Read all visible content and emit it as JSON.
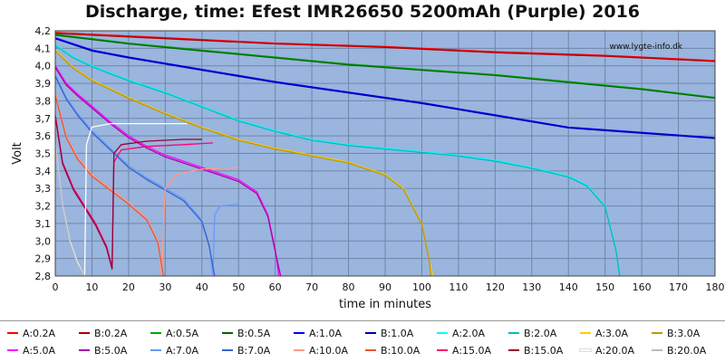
{
  "chart_data": {
    "type": "line",
    "title": "Discharge, time: Efest IMR26650 5200mAh (Purple) 2016",
    "watermark": "www.lygte-info.dk",
    "xlabel": "time in minutes",
    "ylabel": "Volt",
    "xlim": [
      0,
      180
    ],
    "ylim": [
      2.8,
      4.2
    ],
    "x_ticks": [
      "0",
      "10",
      "20",
      "30",
      "40",
      "50",
      "60",
      "70",
      "80",
      "90",
      "100",
      "110",
      "120",
      "130",
      "140",
      "150",
      "160",
      "170",
      "180"
    ],
    "y_ticks": [
      "2,8",
      "2,9",
      "3,0",
      "3,1",
      "3,2",
      "3,3",
      "3,4",
      "3,5",
      "3,6",
      "3,7",
      "3,8",
      "3,9",
      "4,0",
      "4,1",
      "4,2"
    ],
    "grid": true,
    "background_color": "#9ab5de",
    "legend_position": "bottom",
    "series": [
      {
        "name": "A:0.2A",
        "color": "#ff0000",
        "points": [
          [
            0,
            4.19
          ],
          [
            30,
            4.16
          ],
          [
            60,
            4.13
          ],
          [
            90,
            4.11
          ],
          [
            120,
            4.08
          ],
          [
            150,
            4.06
          ],
          [
            180,
            4.03
          ]
        ]
      },
      {
        "name": "B:0.2A",
        "color": "#aa0000",
        "points": [
          [
            0,
            4.185
          ],
          [
            30,
            4.155
          ],
          [
            60,
            4.125
          ],
          [
            90,
            4.105
          ],
          [
            120,
            4.075
          ],
          [
            150,
            4.055
          ],
          [
            180,
            4.025
          ]
        ]
      },
      {
        "name": "A:0.5A",
        "color": "#00aa00",
        "points": [
          [
            0,
            4.18
          ],
          [
            20,
            4.13
          ],
          [
            40,
            4.09
          ],
          [
            60,
            4.05
          ],
          [
            80,
            4.01
          ],
          [
            100,
            3.98
          ],
          [
            120,
            3.95
          ],
          [
            140,
            3.91
          ],
          [
            160,
            3.87
          ],
          [
            180,
            3.82
          ]
        ]
      },
      {
        "name": "B:0.5A",
        "color": "#006600",
        "points": [
          [
            0,
            4.175
          ],
          [
            20,
            4.125
          ],
          [
            40,
            4.085
          ],
          [
            60,
            4.045
          ],
          [
            80,
            4.005
          ],
          [
            100,
            3.975
          ],
          [
            120,
            3.945
          ],
          [
            140,
            3.905
          ],
          [
            160,
            3.865
          ],
          [
            180,
            3.815
          ]
        ]
      },
      {
        "name": "A:1.0A",
        "color": "#0000ff",
        "points": [
          [
            0,
            4.16
          ],
          [
            10,
            4.09
          ],
          [
            20,
            4.05
          ],
          [
            40,
            3.98
          ],
          [
            60,
            3.91
          ],
          [
            80,
            3.85
          ],
          [
            100,
            3.79
          ],
          [
            120,
            3.72
          ],
          [
            140,
            3.65
          ],
          [
            160,
            3.62
          ],
          [
            180,
            3.59
          ]
        ]
      },
      {
        "name": "B:1.0A",
        "color": "#0000aa",
        "points": [
          [
            0,
            4.155
          ],
          [
            10,
            4.085
          ],
          [
            20,
            4.045
          ],
          [
            40,
            3.975
          ],
          [
            60,
            3.905
          ],
          [
            80,
            3.845
          ],
          [
            100,
            3.785
          ],
          [
            120,
            3.715
          ],
          [
            140,
            3.645
          ],
          [
            160,
            3.615
          ],
          [
            180,
            3.585
          ]
        ]
      },
      {
        "name": "A:2.0A",
        "color": "#00ffff",
        "points": [
          [
            0,
            4.12
          ],
          [
            5,
            4.05
          ],
          [
            10,
            4.0
          ],
          [
            20,
            3.92
          ],
          [
            30,
            3.85
          ],
          [
            40,
            3.77
          ],
          [
            50,
            3.69
          ],
          [
            60,
            3.63
          ],
          [
            70,
            3.58
          ],
          [
            80,
            3.55
          ],
          [
            90,
            3.53
          ],
          [
            100,
            3.51
          ],
          [
            110,
            3.49
          ],
          [
            120,
            3.46
          ],
          [
            130,
            3.42
          ],
          [
            140,
            3.37
          ],
          [
            145,
            3.32
          ],
          [
            150,
            3.2
          ],
          [
            153,
            2.95
          ],
          [
            154,
            2.8
          ]
        ]
      },
      {
        "name": "B:2.0A",
        "color": "#00bbbb",
        "points": [
          [
            0,
            4.115
          ],
          [
            5,
            4.045
          ],
          [
            10,
            3.995
          ],
          [
            20,
            3.915
          ],
          [
            30,
            3.845
          ],
          [
            40,
            3.765
          ],
          [
            50,
            3.685
          ],
          [
            60,
            3.625
          ],
          [
            70,
            3.575
          ],
          [
            80,
            3.545
          ],
          [
            90,
            3.525
          ],
          [
            100,
            3.505
          ],
          [
            110,
            3.485
          ],
          [
            120,
            3.455
          ],
          [
            130,
            3.415
          ],
          [
            140,
            3.365
          ],
          [
            145,
            3.315
          ],
          [
            150,
            3.195
          ],
          [
            153,
            2.945
          ],
          [
            154,
            2.8
          ]
        ]
      },
      {
        "name": "A:3.0A",
        "color": "#ffcc00",
        "points": [
          [
            0,
            4.09
          ],
          [
            5,
            3.99
          ],
          [
            10,
            3.92
          ],
          [
            20,
            3.82
          ],
          [
            30,
            3.73
          ],
          [
            40,
            3.65
          ],
          [
            50,
            3.58
          ],
          [
            60,
            3.53
          ],
          [
            70,
            3.49
          ],
          [
            80,
            3.45
          ],
          [
            90,
            3.38
          ],
          [
            95,
            3.3
          ],
          [
            100,
            3.1
          ],
          [
            102,
            2.9
          ],
          [
            103,
            2.8
          ]
        ]
      },
      {
        "name": "B:3.0A",
        "color": "#bb9900",
        "points": [
          [
            0,
            4.085
          ],
          [
            5,
            3.985
          ],
          [
            10,
            3.915
          ],
          [
            20,
            3.815
          ],
          [
            30,
            3.725
          ],
          [
            40,
            3.645
          ],
          [
            50,
            3.575
          ],
          [
            60,
            3.525
          ],
          [
            70,
            3.485
          ],
          [
            80,
            3.445
          ],
          [
            90,
            3.375
          ],
          [
            95,
            3.295
          ],
          [
            100,
            3.095
          ],
          [
            102,
            2.895
          ],
          [
            102.5,
            2.8
          ]
        ]
      },
      {
        "name": "A:5.0A",
        "color": "#ff00ff",
        "points": [
          [
            0,
            4.0
          ],
          [
            3,
            3.9
          ],
          [
            6,
            3.84
          ],
          [
            10,
            3.77
          ],
          [
            15,
            3.68
          ],
          [
            20,
            3.6
          ],
          [
            25,
            3.54
          ],
          [
            30,
            3.49
          ],
          [
            40,
            3.42
          ],
          [
            50,
            3.35
          ],
          [
            55,
            3.28
          ],
          [
            58,
            3.15
          ],
          [
            60,
            2.95
          ],
          [
            61,
            2.8
          ]
        ]
      },
      {
        "name": "B:5.0A",
        "color": "#aa00aa",
        "points": [
          [
            0,
            3.99
          ],
          [
            3,
            3.89
          ],
          [
            6,
            3.83
          ],
          [
            10,
            3.76
          ],
          [
            15,
            3.67
          ],
          [
            20,
            3.59
          ],
          [
            25,
            3.53
          ],
          [
            30,
            3.48
          ],
          [
            40,
            3.41
          ],
          [
            50,
            3.34
          ],
          [
            55,
            3.27
          ],
          [
            58,
            3.14
          ],
          [
            60,
            2.94
          ],
          [
            61.5,
            2.8
          ]
        ]
      },
      {
        "name": "A:7.0A",
        "color": "#6699ff",
        "points": [
          [
            0,
            3.95
          ],
          [
            3,
            3.82
          ],
          [
            6,
            3.73
          ],
          [
            10,
            3.63
          ],
          [
            15,
            3.53
          ],
          [
            20,
            3.43
          ],
          [
            25,
            3.36
          ],
          [
            30,
            3.3
          ],
          [
            35,
            3.24
          ],
          [
            40,
            3.12
          ],
          [
            42,
            2.98
          ],
          [
            43,
            2.8
          ],
          [
            43.5,
            3.15
          ],
          [
            45,
            3.2
          ],
          [
            50,
            3.21
          ]
        ]
      },
      {
        "name": "B:7.0A",
        "color": "#3366cc",
        "points": [
          [
            0,
            3.94
          ],
          [
            3,
            3.81
          ],
          [
            6,
            3.72
          ],
          [
            10,
            3.62
          ],
          [
            15,
            3.52
          ],
          [
            20,
            3.42
          ],
          [
            25,
            3.35
          ],
          [
            30,
            3.29
          ],
          [
            35,
            3.23
          ],
          [
            40,
            3.11
          ],
          [
            42,
            2.97
          ],
          [
            43.5,
            2.8
          ]
        ]
      },
      {
        "name": "A:10.0A",
        "color": "#ff9988",
        "points": [
          [
            0,
            3.84
          ],
          [
            3,
            3.6
          ],
          [
            6,
            3.48
          ],
          [
            10,
            3.38
          ],
          [
            15,
            3.3
          ],
          [
            20,
            3.22
          ],
          [
            25,
            3.13
          ],
          [
            28,
            3.0
          ],
          [
            29,
            2.8
          ],
          [
            30,
            3.3
          ],
          [
            33,
            3.38
          ],
          [
            40,
            3.41
          ],
          [
            50,
            3.42
          ]
        ]
      },
      {
        "name": "B:10.0A",
        "color": "#ee5533",
        "points": [
          [
            0,
            3.83
          ],
          [
            3,
            3.59
          ],
          [
            6,
            3.47
          ],
          [
            10,
            3.37
          ],
          [
            15,
            3.29
          ],
          [
            20,
            3.21
          ],
          [
            25,
            3.12
          ],
          [
            28,
            2.99
          ],
          [
            29.5,
            2.8
          ]
        ]
      },
      {
        "name": "A:15.0A",
        "color": "#ff0077",
        "points": [
          [
            0,
            3.72
          ],
          [
            2,
            3.45
          ],
          [
            5,
            3.3
          ],
          [
            8,
            3.2
          ],
          [
            11,
            3.1
          ],
          [
            14,
            2.97
          ],
          [
            15.5,
            2.85
          ],
          [
            16,
            3.45
          ],
          [
            18,
            3.52
          ],
          [
            25,
            3.54
          ],
          [
            35,
            3.55
          ],
          [
            43,
            3.56
          ]
        ]
      },
      {
        "name": "B:15.0A",
        "color": "#990033",
        "points": [
          [
            0,
            3.71
          ],
          [
            2,
            3.44
          ],
          [
            5,
            3.29
          ],
          [
            8,
            3.19
          ],
          [
            11,
            3.09
          ],
          [
            14,
            2.96
          ],
          [
            15.5,
            2.84
          ],
          [
            16,
            3.5
          ],
          [
            18,
            3.55
          ],
          [
            25,
            3.57
          ],
          [
            35,
            3.58
          ],
          [
            40,
            3.58
          ]
        ]
      },
      {
        "name": "A:20.0A",
        "color": "#ffffff",
        "points": [
          [
            0,
            3.55
          ],
          [
            2,
            3.2
          ],
          [
            4,
            3.0
          ],
          [
            6,
            2.88
          ],
          [
            8,
            2.8
          ],
          [
            8.5,
            3.55
          ],
          [
            10,
            3.65
          ],
          [
            15,
            3.67
          ],
          [
            25,
            3.67
          ],
          [
            36,
            3.67
          ]
        ]
      },
      {
        "name": "B:20.0A",
        "color": "#bbbbbb",
        "points": [
          [
            0,
            3.54
          ],
          [
            2,
            3.19
          ],
          [
            4,
            2.99
          ],
          [
            6,
            2.87
          ],
          [
            8,
            2.8
          ]
        ]
      }
    ]
  }
}
